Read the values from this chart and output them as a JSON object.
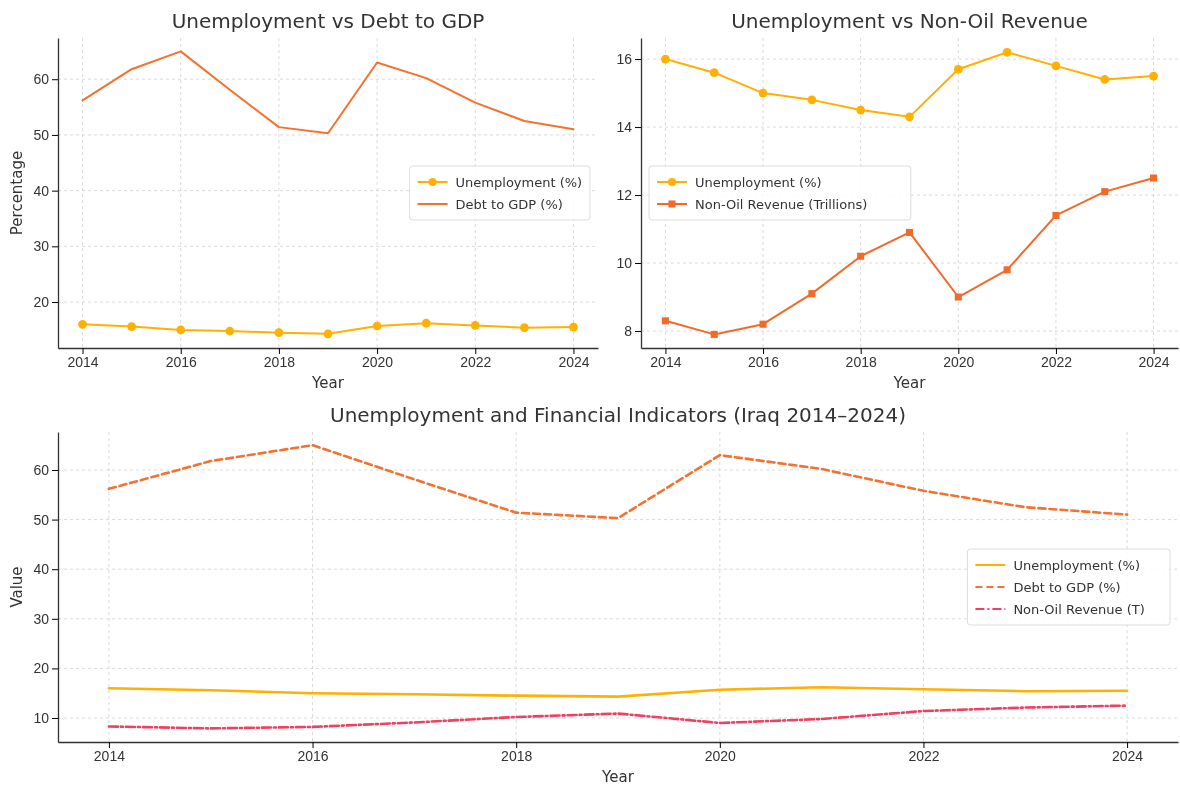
{
  "chart_data": [
    {
      "type": "line",
      "title": "Unemployment vs Debt to GDP",
      "xlabel": "Year",
      "ylabel": "Percentage",
      "x": [
        2014,
        2015,
        2016,
        2017,
        2018,
        2019,
        2020,
        2021,
        2022,
        2023,
        2024
      ],
      "xlim": [
        2013.5,
        2024.5
      ],
      "xticks": [
        2014,
        2016,
        2018,
        2020,
        2022,
        2024
      ],
      "ylim": [
        11.75,
        67.4
      ],
      "yticks": [
        20,
        30,
        40,
        50,
        60
      ],
      "grid": true,
      "legend": "right",
      "series": [
        {
          "name": "Unemployment (%)",
          "color": "#ffb000",
          "marker": "circle",
          "values": [
            16.0,
            15.6,
            15.0,
            14.8,
            14.5,
            14.3,
            15.7,
            16.2,
            15.8,
            15.4,
            15.5
          ]
        },
        {
          "name": "Debt to GDP (%)",
          "color": "#f4712f",
          "marker": "none",
          "values": [
            56.2,
            61.8,
            65.0,
            58.1,
            51.4,
            50.3,
            63.0,
            60.2,
            55.8,
            52.5,
            51.0
          ]
        }
      ]
    },
    {
      "type": "line",
      "title": "Unemployment vs Non-Oil Revenue",
      "xlabel": "Year",
      "x": [
        2014,
        2015,
        2016,
        2017,
        2018,
        2019,
        2020,
        2021,
        2022,
        2023,
        2024
      ],
      "xlim": [
        2013.5,
        2024.5
      ],
      "xticks": [
        2014,
        2016,
        2018,
        2020,
        2022,
        2024
      ],
      "ylim": [
        7.5,
        16.62
      ],
      "yticks": [
        8,
        10,
        12,
        14,
        16
      ],
      "grid": true,
      "legend": "left",
      "series": [
        {
          "name": "Unemployment (%)",
          "color": "#ffb000",
          "marker": "circle",
          "values": [
            16.0,
            15.6,
            15.0,
            14.8,
            14.5,
            14.3,
            15.7,
            16.2,
            15.8,
            15.4,
            15.5
          ]
        },
        {
          "name": "Non-Oil Revenue (Trillions)",
          "color": "#f26a2a",
          "marker": "square",
          "values": [
            8.3,
            7.9,
            8.2,
            9.1,
            10.2,
            10.9,
            9.0,
            9.8,
            11.4,
            12.1,
            12.5
          ]
        }
      ]
    },
    {
      "type": "line",
      "title": "Unemployment and Financial Indicators (Iraq 2014–2024)",
      "xlabel": "Year",
      "ylabel": "Value",
      "x": [
        2014,
        2015,
        2016,
        2017,
        2018,
        2019,
        2020,
        2021,
        2022,
        2023,
        2024
      ],
      "xlim": [
        2013.5,
        2024.5
      ],
      "xticks": [
        2014,
        2016,
        2018,
        2020,
        2022,
        2024
      ],
      "ylim": [
        5.16,
        67.66
      ],
      "yticks": [
        10,
        20,
        30,
        40,
        50,
        60
      ],
      "grid": true,
      "legend": "right",
      "series": [
        {
          "name": "Unemployment (%)",
          "color": "#ffb000",
          "line_style": "solid",
          "values": [
            16.0,
            15.6,
            15.0,
            14.8,
            14.5,
            14.3,
            15.7,
            16.2,
            15.8,
            15.4,
            15.5
          ]
        },
        {
          "name": "Debt to GDP (%)",
          "color": "#f4712f",
          "line_style": "dashed",
          "values": [
            56.2,
            61.8,
            65.0,
            58.1,
            51.4,
            50.3,
            63.0,
            60.2,
            55.8,
            52.5,
            51.0
          ]
        },
        {
          "name": "Non-Oil Revenue (T)",
          "color": "#f0405f",
          "line_style": "dashdot",
          "values": [
            8.3,
            7.9,
            8.2,
            9.1,
            10.2,
            10.9,
            9.0,
            9.8,
            11.4,
            12.1,
            12.5
          ]
        }
      ]
    }
  ]
}
